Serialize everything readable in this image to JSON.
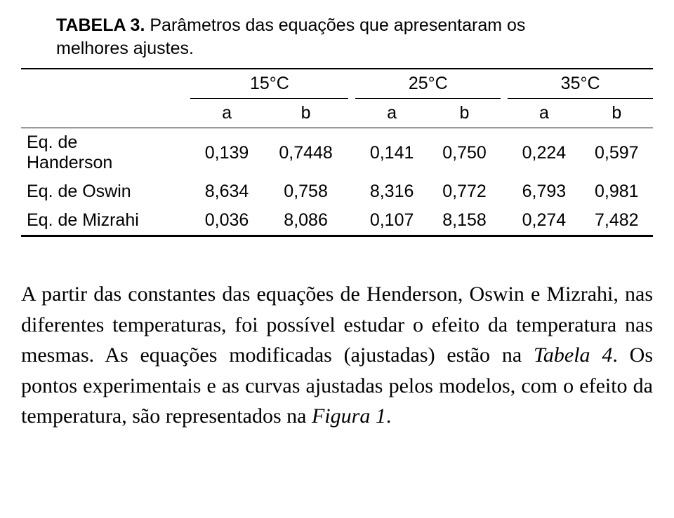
{
  "table": {
    "caption_label": "TABELA 3.",
    "caption_text": "Parâmetros das equações que apresentaram os melhores ajustes.",
    "caption_fontsize": 25,
    "temp_headers": [
      "15°C",
      "25°C",
      "35°C"
    ],
    "sub_headers": [
      "a",
      "b",
      "a",
      "b",
      "a",
      "b"
    ],
    "rows": [
      {
        "label_line1": "Eq. de",
        "label_line2": "Handerson",
        "values": [
          "0,139",
          "0,7448",
          "0,141",
          "0,750",
          "0,224",
          "0,597"
        ]
      },
      {
        "label_line1": "Eq. de Oswin",
        "label_line2": "",
        "values": [
          "8,634",
          "0,758",
          "8,316",
          "0,772",
          "6,793",
          "0,981"
        ]
      },
      {
        "label_line1": "Eq. de Mizrahi",
        "label_line2": "",
        "values": [
          "0,036",
          "8,086",
          "0,107",
          "8,158",
          "0,274",
          "7,482"
        ]
      }
    ],
    "cell_fontsize": 25,
    "rule_color": "#000000",
    "background_color": "#ffffff"
  },
  "paragraph": {
    "part1": "A partir das constantes das equações de Henderson, Oswin e Mizrahi, nas diferentes temperaturas, foi possível estudar o efeito da temperatura nas mesmas. As equações modificadas (ajustadas) estão na ",
    "italic1": "Tabela 4",
    "part2": ". Os pontos experimentais e as curvas ajustadas pelos modelos, com o efeito da temperatura, são representados na ",
    "italic2": "Figura 1",
    "part3": ".",
    "fontsize": 30,
    "font_family": "Times New Roman"
  }
}
